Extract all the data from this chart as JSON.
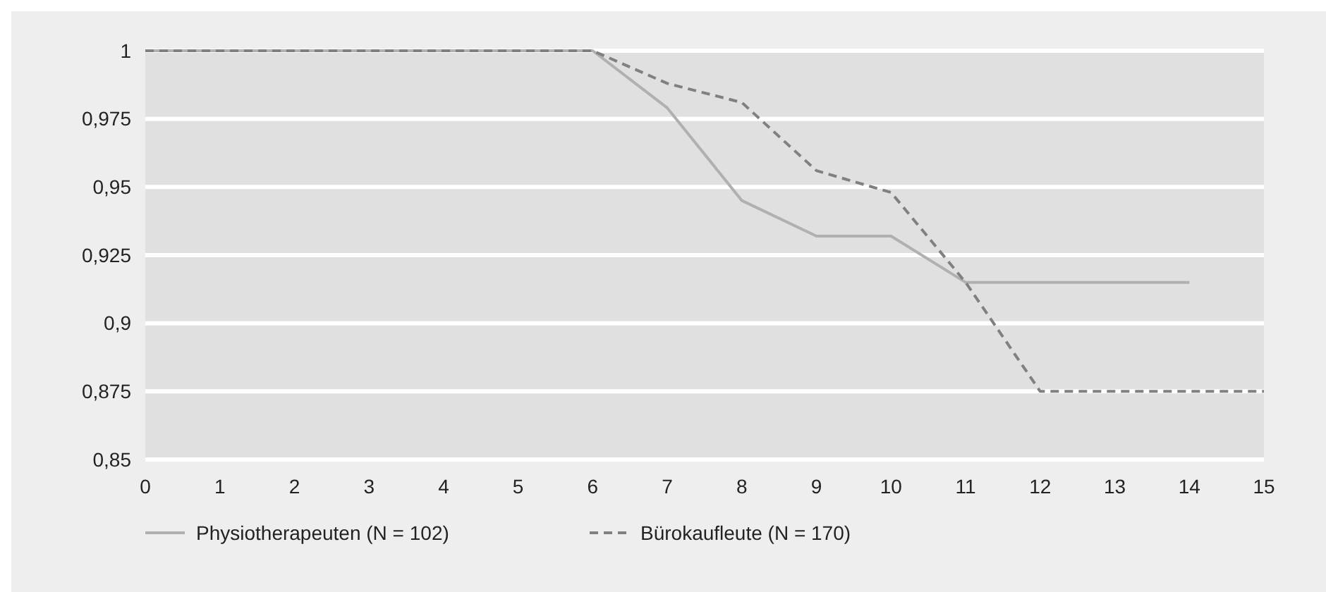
{
  "chart_data": {
    "type": "line",
    "x": [
      0,
      1,
      2,
      3,
      4,
      5,
      6,
      7,
      8,
      9,
      10,
      11,
      12,
      13,
      14,
      15
    ],
    "series": [
      {
        "name": "Physiotherapeuten (N = 102)",
        "color": "#b0b0b0",
        "line_style": "solid",
        "values": [
          1,
          1,
          1,
          1,
          1,
          1,
          1,
          0.979,
          0.945,
          0.932,
          0.932,
          0.915,
          0.915,
          0.915,
          0.915,
          null
        ]
      },
      {
        "name": "Bürokaufleute (N = 170)",
        "color": "#808080",
        "line_style": "dashed",
        "values": [
          1,
          1,
          1,
          1,
          1,
          1,
          1,
          0.988,
          0.981,
          0.956,
          0.948,
          0.915,
          0.875,
          0.875,
          0.875,
          0.875
        ]
      }
    ],
    "xlim": [
      0,
      15
    ],
    "xticks": [
      0,
      1,
      2,
      3,
      4,
      5,
      6,
      7,
      8,
      9,
      10,
      11,
      12,
      13,
      14,
      15
    ],
    "ylim": [
      0.85,
      1
    ],
    "yticks": [
      {
        "value": 0.85,
        "label": "0,85"
      },
      {
        "value": 0.875,
        "label": "0,875"
      },
      {
        "value": 0.9,
        "label": "0,9"
      },
      {
        "value": 0.925,
        "label": "0,925"
      },
      {
        "value": 0.95,
        "label": "0,95"
      },
      {
        "value": 0.975,
        "label": "0,975"
      },
      {
        "value": 1,
        "label": "1"
      }
    ],
    "grid": "y",
    "legend": "bottom left",
    "marker": "none"
  }
}
